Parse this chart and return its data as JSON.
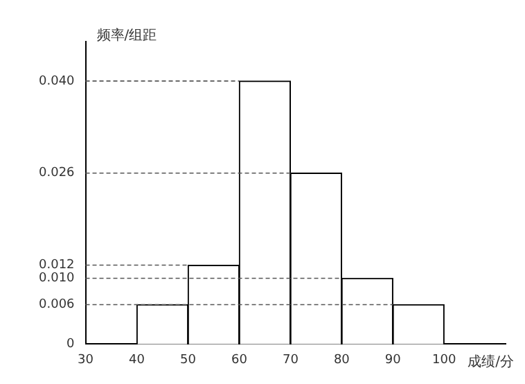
{
  "chart_data": {
    "type": "histogram",
    "xlabel": "成绩/分",
    "ylabel": "频率/组距",
    "bins": [
      40,
      50,
      60,
      70,
      80,
      90,
      100
    ],
    "values": [
      0.006,
      0.012,
      0.04,
      0.026,
      0.01,
      0.006
    ],
    "color": "#ffffff",
    "xlim": [
      30,
      112
    ],
    "xticks": [
      30,
      40,
      50,
      60,
      70,
      80,
      90,
      100
    ],
    "ylim": [
      0,
      0.046
    ],
    "yticks": [
      0,
      {
        "value": 0.006,
        "label": "0.006"
      },
      {
        "value": 0.01,
        "label": "0.010"
      },
      {
        "value": 0.012,
        "label": "0.012"
      },
      {
        "value": 0.026,
        "label": "0.026"
      },
      {
        "value": 0.04,
        "label": "0.040"
      }
    ],
    "ref_lines": [
      {
        "axis": "y",
        "value": 0.04,
        "line_style": "dashed",
        "color": "#555555"
      },
      {
        "axis": "y",
        "value": 0.026,
        "line_style": "dashed",
        "color": "#555555"
      },
      {
        "axis": "y",
        "value": 0.012,
        "line_style": "dashed",
        "color": "#555555"
      },
      {
        "axis": "y",
        "value": 0.01,
        "line_style": "dashed",
        "color": "#555555"
      },
      {
        "axis": "y",
        "value": 0.006,
        "line_style": "dashed",
        "color": "#555555"
      }
    ],
    "legend": false
  }
}
